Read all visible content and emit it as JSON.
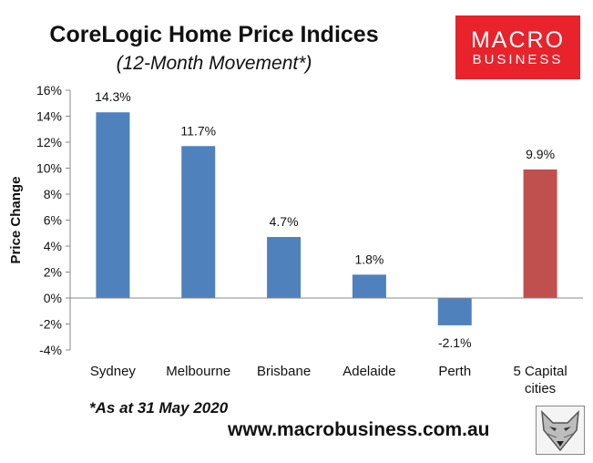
{
  "header": {
    "title": "CoreLogic Home Price Indices",
    "subtitle": "(12-Month Movement*)"
  },
  "logo": {
    "line1": "MACRO",
    "line2": "BUSINESS"
  },
  "footnote": "*As at 31 May 2020",
  "website": "www.macrobusiness.com.au",
  "chart_data": {
    "type": "bar",
    "title": "CoreLogic Home Price Indices",
    "subtitle": "(12-Month Movement*)",
    "ylabel": "Price Change",
    "xlabel": "",
    "categories": [
      "Sydney",
      "Melbourne",
      "Brisbane",
      "Adelaide",
      "Perth",
      "5 Capital cities"
    ],
    "category_lines": [
      [
        "Sydney"
      ],
      [
        "Melbourne"
      ],
      [
        "Brisbane"
      ],
      [
        "Adelaide"
      ],
      [
        "Perth"
      ],
      [
        "5 Capital",
        "cities"
      ]
    ],
    "values": [
      14.3,
      11.7,
      4.7,
      1.8,
      -2.1,
      9.9
    ],
    "labels": [
      "14.3%",
      "11.7%",
      "4.7%",
      "1.8%",
      "-2.1%",
      "9.9%"
    ],
    "colors": [
      "#4f81bd",
      "#4f81bd",
      "#4f81bd",
      "#4f81bd",
      "#4f81bd",
      "#c0504d"
    ],
    "ylim": [
      -4,
      16
    ],
    "yticks": [
      -4,
      -2,
      0,
      2,
      4,
      6,
      8,
      10,
      12,
      14,
      16
    ],
    "ytick_labels": [
      "-4%",
      "-2%",
      "0%",
      "2%",
      "4%",
      "6%",
      "8%",
      "10%",
      "12%",
      "14%",
      "16%"
    ],
    "grid": false,
    "legend": "none"
  }
}
